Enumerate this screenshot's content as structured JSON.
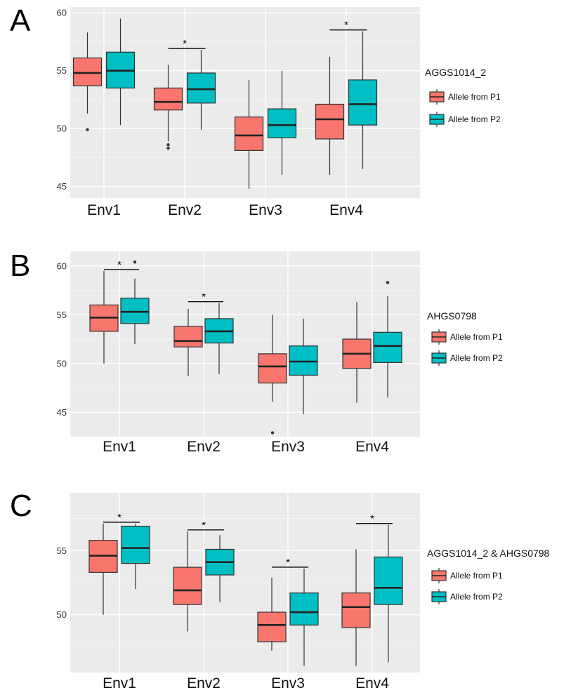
{
  "chart_data": [
    {
      "panel_label": "A",
      "type": "box",
      "legend_title": "AGGS1014_2",
      "legend_placement": "right",
      "categories": [
        "Env1",
        "Env2",
        "Env3",
        "Env4"
      ],
      "ylim": [
        44,
        60.5
      ],
      "yticks": [
        45,
        50,
        55,
        60
      ],
      "grid": true,
      "significance": [
        false,
        true,
        false,
        true
      ],
      "series": [
        {
          "name": "Allele from P1",
          "color": "#F8766D",
          "boxes": [
            {
              "min": 51.3,
              "q1": 53.7,
              "median": 54.8,
              "q3": 56.1,
              "max": 58.3,
              "outliers": [
                49.9
              ]
            },
            {
              "min": 48.9,
              "q1": 51.6,
              "median": 52.3,
              "q3": 53.5,
              "max": 55.5,
              "outliers": [
                48.6,
                48.3
              ]
            },
            {
              "min": 44.8,
              "q1": 48.1,
              "median": 49.4,
              "q3": 51.0,
              "max": 54.2,
              "outliers": []
            },
            {
              "min": 46.0,
              "q1": 49.1,
              "median": 50.8,
              "q3": 52.1,
              "max": 56.2,
              "outliers": []
            }
          ]
        },
        {
          "name": "Allele from P2",
          "color": "#00BFC4",
          "boxes": [
            {
              "min": 50.3,
              "q1": 53.5,
              "median": 55.0,
              "q3": 56.6,
              "max": 59.5,
              "outliers": []
            },
            {
              "min": 49.9,
              "q1": 52.2,
              "median": 53.4,
              "q3": 54.8,
              "max": 56.8,
              "outliers": []
            },
            {
              "min": 46.0,
              "q1": 49.2,
              "median": 50.3,
              "q3": 51.7,
              "max": 55.0,
              "outliers": []
            },
            {
              "min": 46.5,
              "q1": 50.3,
              "median": 52.1,
              "q3": 54.2,
              "max": 58.4,
              "outliers": []
            }
          ]
        }
      ]
    },
    {
      "panel_label": "B",
      "type": "box",
      "legend_title": "AHGS0798",
      "legend_placement": "right",
      "categories": [
        "Env1",
        "Env2",
        "Env3",
        "Env4"
      ],
      "ylim": [
        42.5,
        61.5
      ],
      "yticks": [
        45,
        50,
        55,
        60
      ],
      "grid": true,
      "significance": [
        true,
        true,
        false,
        false
      ],
      "series": [
        {
          "name": "Allele from P1",
          "color": "#F8766D",
          "boxes": [
            {
              "min": 50.0,
              "q1": 53.3,
              "median": 54.7,
              "q3": 56.0,
              "max": 59.5,
              "outliers": []
            },
            {
              "min": 48.7,
              "q1": 51.7,
              "median": 52.3,
              "q3": 53.8,
              "max": 55.6,
              "outliers": []
            },
            {
              "min": 46.1,
              "q1": 48.0,
              "median": 49.7,
              "q3": 51.0,
              "max": 55.0,
              "outliers": [
                42.9
              ]
            },
            {
              "min": 46.0,
              "q1": 49.5,
              "median": 51.0,
              "q3": 52.5,
              "max": 56.3,
              "outliers": []
            }
          ]
        },
        {
          "name": "Allele from P2",
          "color": "#00BFC4",
          "boxes": [
            {
              "min": 52.0,
              "q1": 54.1,
              "median": 55.3,
              "q3": 56.7,
              "max": 58.7,
              "outliers": [
                60.4
              ]
            },
            {
              "min": 48.9,
              "q1": 52.1,
              "median": 53.3,
              "q3": 54.6,
              "max": 56.2,
              "outliers": []
            },
            {
              "min": 44.8,
              "q1": 48.8,
              "median": 50.2,
              "q3": 51.8,
              "max": 54.6,
              "outliers": []
            },
            {
              "min": 46.5,
              "q1": 50.1,
              "median": 51.8,
              "q3": 53.2,
              "max": 56.9,
              "outliers": [
                58.3
              ]
            }
          ]
        }
      ]
    },
    {
      "panel_label": "C",
      "type": "box",
      "legend_title": "AGGS1014_2 & AHGS0798",
      "legend_placement": "right",
      "categories": [
        "Env1",
        "Env2",
        "Env3",
        "Env4"
      ],
      "ylim": [
        45.5,
        59.5
      ],
      "yticks": [
        50,
        55
      ],
      "grid": true,
      "significance": [
        true,
        true,
        true,
        true
      ],
      "series": [
        {
          "name": "Allele from P1",
          "color": "#F8766D",
          "boxes": [
            {
              "min": 50.0,
              "q1": 53.3,
              "median": 54.6,
              "q3": 55.8,
              "max": 57.1,
              "outliers": []
            },
            {
              "min": 48.7,
              "q1": 50.8,
              "median": 51.9,
              "q3": 53.7,
              "max": 56.5,
              "outliers": []
            },
            {
              "min": 47.2,
              "q1": 47.9,
              "median": 49.2,
              "q3": 50.2,
              "max": 52.9,
              "outliers": []
            },
            {
              "min": 46.0,
              "q1": 49.0,
              "median": 50.6,
              "q3": 51.7,
              "max": 55.1,
              "outliers": []
            }
          ]
        },
        {
          "name": "Allele from P2",
          "color": "#00BFC4",
          "boxes": [
            {
              "min": 52.0,
              "q1": 54.0,
              "median": 55.2,
              "q3": 56.9,
              "max": 57.1,
              "outliers": []
            },
            {
              "min": 51.0,
              "q1": 53.1,
              "median": 54.1,
              "q3": 55.1,
              "max": 56.2,
              "outliers": []
            },
            {
              "min": 46.0,
              "q1": 49.2,
              "median": 50.2,
              "q3": 51.7,
              "max": 53.6,
              "outliers": []
            },
            {
              "min": 46.3,
              "q1": 50.8,
              "median": 52.1,
              "q3": 54.5,
              "max": 57.0,
              "outliers": []
            }
          ]
        }
      ]
    }
  ]
}
